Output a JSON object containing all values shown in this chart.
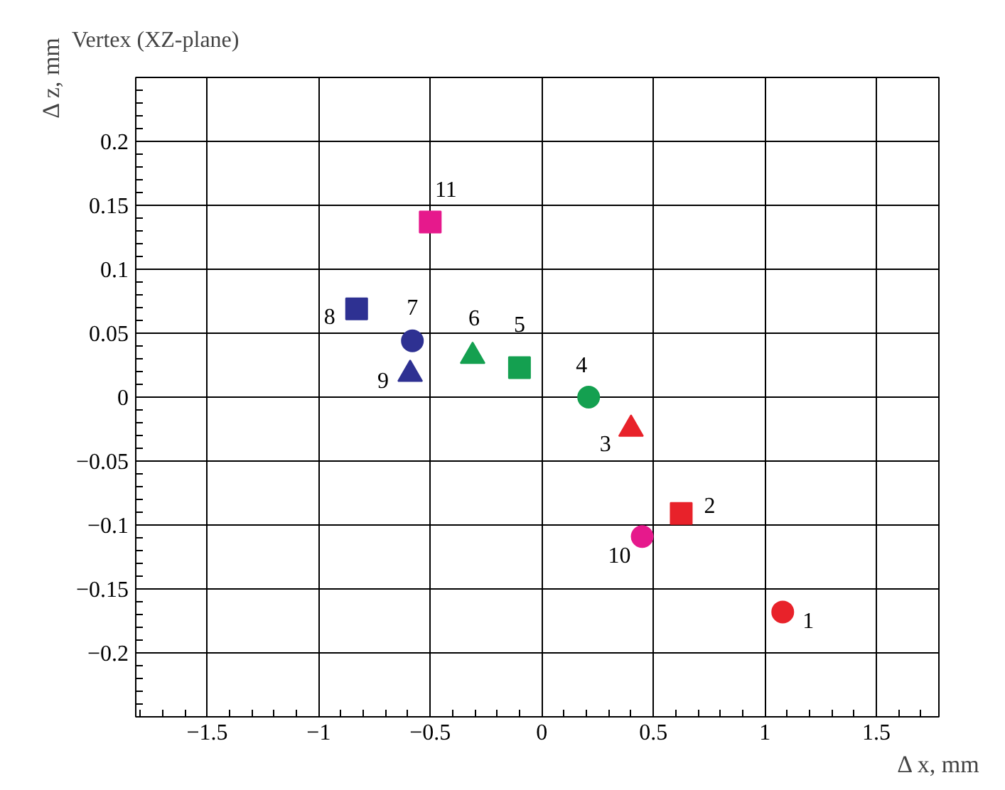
{
  "chart_data": {
    "type": "scatter",
    "title": "Vertex (XZ-plane)",
    "xlabel": "Δ x, mm",
    "ylabel": "Δ z, mm",
    "xlim": [
      -1.82,
      1.78
    ],
    "ylim": [
      -0.25,
      0.25
    ],
    "xticks": [
      {
        "value": -1.5,
        "label": "−1.5"
      },
      {
        "value": -1,
        "label": "−1"
      },
      {
        "value": -0.5,
        "label": "−0.5"
      },
      0,
      0.5,
      1,
      1.5
    ],
    "yticks": [
      {
        "value": -0.2,
        "label": "−0.2"
      },
      {
        "value": -0.15,
        "label": "−0.15"
      },
      {
        "value": -0.1,
        "label": "−0.1"
      },
      {
        "value": -0.05,
        "label": "−0.05"
      },
      0,
      0.05,
      0.1,
      0.15,
      0.2
    ],
    "grid": true,
    "series": [
      {
        "marker": "circle",
        "x": [
          1.08,
          0.21,
          -0.58,
          0.45
        ],
        "values": [
          -0.168,
          0.0,
          0.044,
          -0.109
        ],
        "colors": [
          "#e8222a",
          "#14a050",
          "#2e3192",
          "#e6198c"
        ]
      },
      {
        "marker": "square",
        "x": [
          0.625,
          -0.1,
          -0.83,
          -0.5
        ],
        "values": [
          -0.091,
          0.023,
          0.069,
          0.137
        ],
        "colors": [
          "#e8222a",
          "#14a050",
          "#2e3192",
          "#e6198c"
        ]
      },
      {
        "marker": "triangle",
        "x": [
          0.4,
          -0.31,
          -0.59
        ],
        "values": [
          -0.025,
          0.032,
          0.018
        ],
        "colors": [
          "#e8222a",
          "#14a050",
          "#2e3192"
        ]
      }
    ],
    "annotations": [
      {
        "text": "1",
        "x": 1.08,
        "y": -0.168
      },
      {
        "text": "2",
        "x": 0.625,
        "y": -0.091
      },
      {
        "text": "3",
        "x": 0.4,
        "y": -0.025
      },
      {
        "text": "4",
        "x": 0.21,
        "y": 0.0
      },
      {
        "text": "5",
        "x": -0.1,
        "y": 0.023
      },
      {
        "text": "6",
        "x": -0.31,
        "y": 0.032
      },
      {
        "text": "7",
        "x": -0.58,
        "y": 0.044
      },
      {
        "text": "8",
        "x": -0.83,
        "y": 0.069
      },
      {
        "text": "9",
        "x": -0.59,
        "y": 0.018
      },
      {
        "text": "10",
        "x": 0.45,
        "y": -0.109
      },
      {
        "text": "11",
        "x": -0.5,
        "y": 0.137
      }
    ]
  }
}
